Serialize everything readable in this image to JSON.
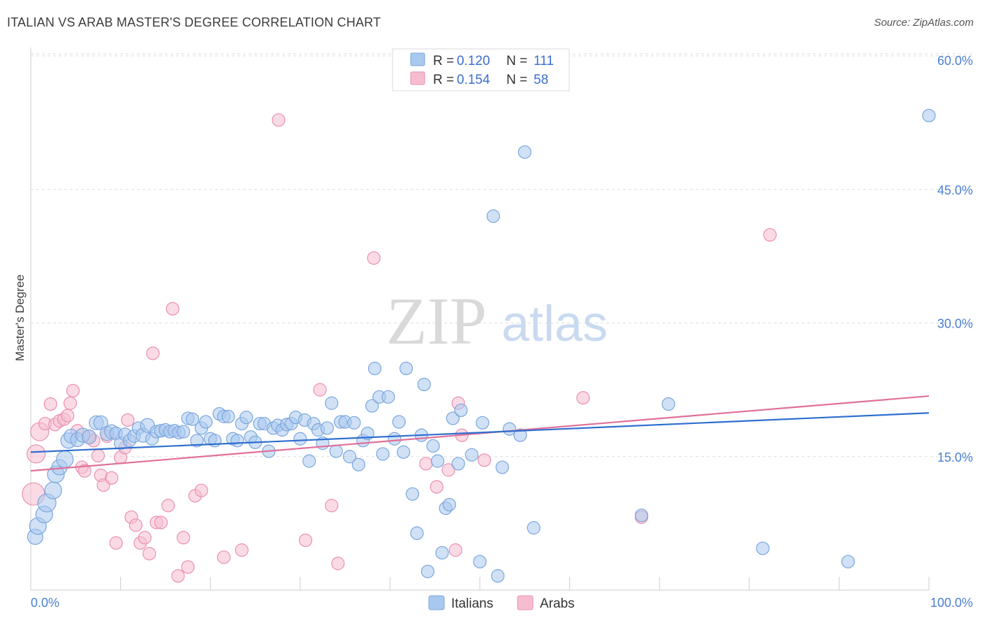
{
  "title": "ITALIAN VS ARAB MASTER'S DEGREE CORRELATION CHART",
  "source": "Source: ZipAtlas.com",
  "watermark": {
    "zip": "ZIP",
    "atlas": "atlas"
  },
  "colors": {
    "italians_fill": "#a9c8ef",
    "italians_stroke": "#7aa6de",
    "italians_line": "#2f6fcf",
    "arabs_fill": "#f6bdd0",
    "arabs_stroke": "#ea8fb0",
    "arabs_line": "#e0709a",
    "grid": "#dddddd",
    "tick_text": "#4a7fd4"
  },
  "legend": {
    "rows": [
      {
        "r_label": "R = ",
        "r_value": "0.120",
        "n_label": "N = ",
        "n_value": "111"
      },
      {
        "r_label": "R = ",
        "r_value": "0.154",
        "n_label": "N = ",
        "n_value": "58"
      }
    ]
  },
  "chart_data": {
    "type": "scatter",
    "title": "ITALIAN VS ARAB MASTER'S DEGREE CORRELATION CHART",
    "xlabel": "",
    "ylabel": "Master's Degree",
    "xlim": [
      0,
      100
    ],
    "ylim": [
      0,
      60
    ],
    "y_ticks": [
      15,
      30,
      45,
      60
    ],
    "y_tick_labels": [
      "15.0%",
      "30.0%",
      "45.0%",
      "60.0%"
    ],
    "x_tick_labels": [
      "0.0%",
      "100.0%"
    ],
    "grid": "horizontal dashed",
    "legend_position": "top-center",
    "series": [
      {
        "name": "Italians",
        "r": 0.12,
        "n": 111,
        "trend": [
          [
            0,
            15.5
          ],
          [
            100,
            19.9
          ]
        ],
        "points": [
          [
            0.5,
            6.0,
            11
          ],
          [
            0.8,
            7.2,
            12
          ],
          [
            1.5,
            8.5,
            12
          ],
          [
            1.8,
            9.8,
            13
          ],
          [
            2.5,
            11.2,
            12
          ],
          [
            2.8,
            13.0,
            12
          ],
          [
            3.2,
            13.8,
            11
          ],
          [
            3.8,
            14.7,
            12
          ],
          [
            4.2,
            16.8,
            11
          ],
          [
            4.5,
            17.3,
            10
          ],
          [
            5.2,
            16.9,
            10
          ],
          [
            5.8,
            17.4,
            10
          ],
          [
            6.5,
            17.2,
            10
          ],
          [
            7.3,
            18.8,
            10
          ],
          [
            7.8,
            18.8,
            10
          ],
          [
            8.5,
            17.6,
            10
          ],
          [
            9.0,
            17.8,
            10
          ],
          [
            9.5,
            17.6,
            9
          ],
          [
            10.0,
            16.5,
            9
          ],
          [
            10.5,
            17.5,
            9
          ],
          [
            11.0,
            16.8,
            9
          ],
          [
            11.5,
            17.3,
            9
          ],
          [
            12.0,
            18.2,
            9
          ],
          [
            12.5,
            17.4,
            10
          ],
          [
            13.0,
            18.5,
            10
          ],
          [
            13.5,
            17.0,
            9
          ],
          [
            14.0,
            17.8,
            9
          ],
          [
            14.5,
            17.9,
            9
          ],
          [
            15.0,
            18.0,
            9
          ],
          [
            15.5,
            17.8,
            9
          ],
          [
            16.0,
            17.9,
            9
          ],
          [
            16.5,
            17.7,
            9
          ],
          [
            17.0,
            17.8,
            9
          ],
          [
            17.5,
            19.3,
            9
          ],
          [
            18.0,
            19.2,
            9
          ],
          [
            18.5,
            16.8,
            9
          ],
          [
            19.0,
            18.2,
            9
          ],
          [
            19.5,
            18.9,
            9
          ],
          [
            20.0,
            17.0,
            9
          ],
          [
            20.5,
            16.8,
            9
          ],
          [
            21.0,
            19.8,
            9
          ],
          [
            21.5,
            19.5,
            9
          ],
          [
            22.0,
            19.5,
            9
          ],
          [
            22.5,
            17.0,
            9
          ],
          [
            23.0,
            16.8,
            9
          ],
          [
            23.5,
            18.7,
            9
          ],
          [
            24.0,
            19.4,
            9
          ],
          [
            24.5,
            17.2,
            9
          ],
          [
            25.0,
            16.6,
            9
          ],
          [
            25.5,
            18.7,
            9
          ],
          [
            26.0,
            18.7,
            9
          ],
          [
            26.5,
            15.6,
            9
          ],
          [
            27.0,
            18.2,
            9
          ],
          [
            27.5,
            18.5,
            9
          ],
          [
            28.0,
            18.0,
            9
          ],
          [
            28.5,
            18.6,
            9
          ],
          [
            29.0,
            18.7,
            9
          ],
          [
            29.5,
            19.4,
            9
          ],
          [
            30.0,
            17.0,
            9
          ],
          [
            30.5,
            19.1,
            9
          ],
          [
            31.0,
            14.5,
            9
          ],
          [
            31.5,
            18.7,
            9
          ],
          [
            32.0,
            18.0,
            9
          ],
          [
            32.5,
            16.5,
            9
          ],
          [
            33.0,
            18.2,
            9
          ],
          [
            33.5,
            21.0,
            9
          ],
          [
            34.0,
            15.6,
            9
          ],
          [
            34.5,
            18.9,
            9
          ],
          [
            35.0,
            18.9,
            9
          ],
          [
            35.5,
            15.0,
            9
          ],
          [
            36.0,
            18.8,
            9
          ],
          [
            36.5,
            14.1,
            9
          ],
          [
            37.0,
            16.8,
            9
          ],
          [
            37.5,
            17.6,
            9
          ],
          [
            38.0,
            20.7,
            9
          ],
          [
            38.3,
            24.9,
            9
          ],
          [
            38.8,
            21.7,
            9
          ],
          [
            39.2,
            15.3,
            9
          ],
          [
            39.8,
            21.7,
            9
          ],
          [
            40.5,
            17.0,
            9
          ],
          [
            41.0,
            18.9,
            9
          ],
          [
            41.5,
            15.5,
            9
          ],
          [
            41.8,
            24.9,
            9
          ],
          [
            42.5,
            10.8,
            9
          ],
          [
            43.0,
            6.4,
            9
          ],
          [
            43.5,
            17.4,
            9
          ],
          [
            43.8,
            23.1,
            9
          ],
          [
            44.2,
            2.1,
            9
          ],
          [
            44.8,
            16.2,
            9
          ],
          [
            45.3,
            14.5,
            9
          ],
          [
            45.8,
            4.2,
            9
          ],
          [
            46.2,
            9.2,
            9
          ],
          [
            46.6,
            9.6,
            9
          ],
          [
            47.0,
            19.3,
            9
          ],
          [
            47.6,
            14.2,
            9
          ],
          [
            47.9,
            20.2,
            9
          ],
          [
            49.1,
            15.2,
            9
          ],
          [
            50.0,
            3.2,
            9
          ],
          [
            50.3,
            18.8,
            9
          ],
          [
            51.5,
            42.0,
            9
          ],
          [
            52.0,
            1.6,
            9
          ],
          [
            52.5,
            13.8,
            9
          ],
          [
            53.3,
            18.1,
            9
          ],
          [
            54.5,
            17.4,
            9
          ],
          [
            55.0,
            49.2,
            9
          ],
          [
            56.0,
            7.0,
            9
          ],
          [
            68.0,
            8.4,
            9
          ],
          [
            71.0,
            20.9,
            9
          ],
          [
            81.5,
            4.7,
            9
          ],
          [
            91.0,
            3.2,
            9
          ],
          [
            100.0,
            53.3,
            9
          ]
        ]
      },
      {
        "name": "Arabs",
        "r": 0.154,
        "n": 58,
        "trend": [
          [
            0,
            13.4
          ],
          [
            100,
            21.8
          ]
        ],
        "points": [
          [
            0.3,
            10.8,
            16
          ],
          [
            0.6,
            15.3,
            13
          ],
          [
            1.0,
            17.8,
            13
          ],
          [
            1.6,
            18.7,
            9
          ],
          [
            2.2,
            20.9,
            9
          ],
          [
            2.7,
            18.6,
            9
          ],
          [
            3.2,
            19.0,
            9
          ],
          [
            3.7,
            19.2,
            9
          ],
          [
            4.1,
            19.6,
            9
          ],
          [
            4.4,
            21.0,
            9
          ],
          [
            4.7,
            22.4,
            9
          ],
          [
            5.2,
            17.9,
            9
          ],
          [
            5.7,
            13.8,
            9
          ],
          [
            6.0,
            13.4,
            9
          ],
          [
            6.5,
            17.3,
            9
          ],
          [
            7.0,
            16.8,
            9
          ],
          [
            7.5,
            15.1,
            9
          ],
          [
            7.8,
            12.9,
            9
          ],
          [
            8.1,
            11.8,
            9
          ],
          [
            8.5,
            17.3,
            9
          ],
          [
            9.0,
            12.6,
            9
          ],
          [
            9.5,
            5.3,
            9
          ],
          [
            10.0,
            14.9,
            9
          ],
          [
            10.5,
            16.0,
            9
          ],
          [
            10.8,
            19.1,
            9
          ],
          [
            11.2,
            8.2,
            9
          ],
          [
            11.7,
            7.3,
            9
          ],
          [
            12.2,
            5.3,
            9
          ],
          [
            12.7,
            5.9,
            9
          ],
          [
            13.2,
            4.1,
            9
          ],
          [
            13.6,
            26.6,
            9
          ],
          [
            14.0,
            7.6,
            9
          ],
          [
            14.5,
            7.6,
            9
          ],
          [
            15.3,
            9.5,
            9
          ],
          [
            15.8,
            31.6,
            9
          ],
          [
            16.4,
            1.6,
            9
          ],
          [
            17.0,
            5.9,
            9
          ],
          [
            17.5,
            2.6,
            9
          ],
          [
            18.3,
            10.6,
            9
          ],
          [
            19.0,
            11.2,
            9
          ],
          [
            21.5,
            3.7,
            9
          ],
          [
            23.5,
            4.5,
            9
          ],
          [
            27.6,
            52.8,
            9
          ],
          [
            30.6,
            5.6,
            9
          ],
          [
            32.2,
            22.5,
            9
          ],
          [
            33.5,
            9.5,
            9
          ],
          [
            34.2,
            3.0,
            9
          ],
          [
            38.2,
            37.3,
            9
          ],
          [
            44.0,
            14.2,
            9
          ],
          [
            45.2,
            11.6,
            9
          ],
          [
            46.5,
            13.5,
            9
          ],
          [
            47.3,
            4.5,
            9
          ],
          [
            47.6,
            21.0,
            9
          ],
          [
            48.0,
            17.4,
            9
          ],
          [
            50.5,
            14.6,
            9
          ],
          [
            61.5,
            21.6,
            9
          ],
          [
            68.0,
            8.2,
            9
          ],
          [
            82.3,
            39.9,
            9
          ]
        ]
      }
    ]
  },
  "bottom_legend": {
    "items": [
      "Italians",
      "Arabs"
    ]
  }
}
